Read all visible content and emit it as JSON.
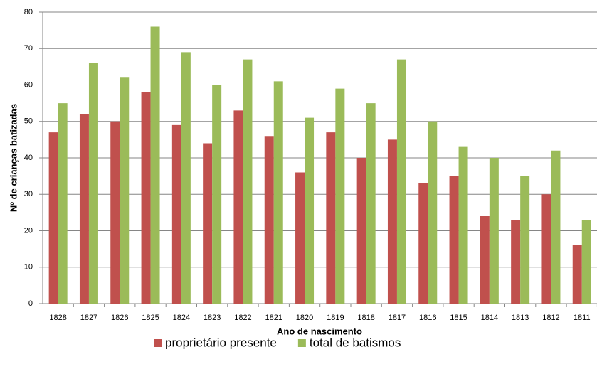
{
  "chart_data": {
    "type": "bar",
    "y_label": "Nº de crianças batizadas",
    "x_label": "Ano de nascimento",
    "categories": [
      "1828",
      "1827",
      "1826",
      "1825",
      "1824",
      "1823",
      "1822",
      "1821",
      "1820",
      "1819",
      "1818",
      "1817",
      "1816",
      "1815",
      "1814",
      "1813",
      "1812",
      "1811"
    ],
    "series": [
      {
        "name": "proprietário presente",
        "color": "#c0504d",
        "values": [
          47,
          52,
          50,
          58,
          49,
          44,
          53,
          46,
          36,
          47,
          40,
          45,
          33,
          35,
          24,
          23,
          30,
          16
        ]
      },
      {
        "name": "total de batismos",
        "color": "#9bbb59",
        "values": [
          55,
          66,
          62,
          76,
          69,
          60,
          67,
          61,
          51,
          59,
          55,
          67,
          50,
          43,
          40,
          35,
          42,
          23
        ]
      }
    ],
    "ylim": [
      0,
      80
    ],
    "yticks": [
      0,
      10,
      20,
      30,
      40,
      50,
      60,
      70,
      80
    ],
    "grid": true
  }
}
